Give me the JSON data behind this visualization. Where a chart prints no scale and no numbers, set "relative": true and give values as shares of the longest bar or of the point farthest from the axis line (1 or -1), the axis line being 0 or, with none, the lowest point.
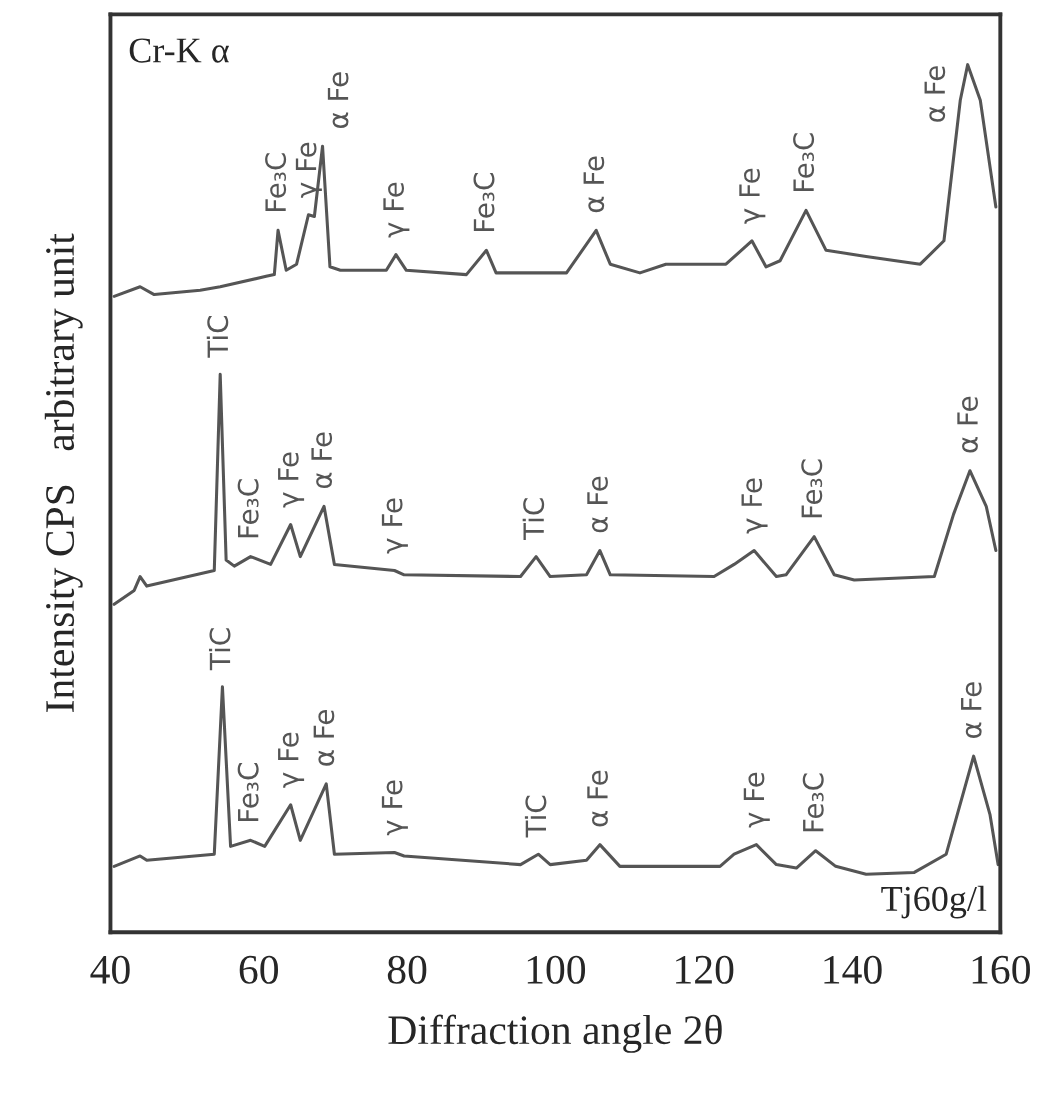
{
  "chart_data": {
    "type": "line",
    "relative": true,
    "xlabel": "Diffraction angle 2θ",
    "ylabel": "Intensity CPS   arbitrary unit",
    "xlim": [
      40,
      160
    ],
    "xticks": [
      40,
      60,
      80,
      100,
      120,
      140,
      160
    ],
    "grid": false,
    "legend": false,
    "marker": "none",
    "line_style": "solid",
    "series": [
      {
        "color": "#555555",
        "x": [
          40.5,
          44.0,
          45.9,
          52.1,
          54.8,
          61.0,
          62.1,
          62.6,
          63.7,
          65.1,
          66.7,
          67.5,
          68.6,
          69.6,
          71.0,
          77.2,
          78.5,
          79.9,
          88.0,
          90.7,
          92.0,
          101.5,
          105.5,
          107.4,
          111.4,
          114.9,
          123.0,
          126.5,
          128.4,
          130.3,
          133.8,
          136.5,
          141.9,
          149.2,
          152.4,
          154.6,
          155.6,
          157.3,
          159.4
        ],
        "values": [
          0.733,
          0.744,
          0.735,
          0.74,
          0.744,
          0.756,
          0.758,
          0.809,
          0.763,
          0.77,
          0.827,
          0.825,
          0.906,
          0.767,
          0.763,
          0.763,
          0.781,
          0.763,
          0.758,
          0.786,
          0.76,
          0.76,
          0.809,
          0.77,
          0.76,
          0.77,
          0.77,
          0.797,
          0.767,
          0.774,
          0.832,
          0.786,
          0.779,
          0.77,
          0.797,
          0.959,
          1.0,
          0.959,
          0.836
        ]
      },
      {
        "color": "#555555",
        "x": [
          40.5,
          43.2,
          44.0,
          44.9,
          54.0,
          54.8,
          55.6,
          56.7,
          58.9,
          61.6,
          64.3,
          65.6,
          68.8,
          70.2,
          78.3,
          79.6,
          95.3,
          97.4,
          99.3,
          104.2,
          106.0,
          107.4,
          121.4,
          124.1,
          126.8,
          129.8,
          131.1,
          134.9,
          137.6,
          140.3,
          151.1,
          153.7,
          155.9,
          158.1,
          159.4
        ],
        "values": [
          0.378,
          0.394,
          0.41,
          0.399,
          0.417,
          0.643,
          0.429,
          0.422,
          0.433,
          0.424,
          0.47,
          0.433,
          0.491,
          0.424,
          0.417,
          0.412,
          0.41,
          0.433,
          0.41,
          0.412,
          0.44,
          0.412,
          0.41,
          0.424,
          0.44,
          0.41,
          0.412,
          0.456,
          0.412,
          0.406,
          0.41,
          0.482,
          0.532,
          0.491,
          0.44
        ]
      },
      {
        "color": "#555555",
        "x": [
          40.5,
          44.0,
          44.9,
          54.0,
          55.1,
          56.2,
          58.9,
          60.8,
          64.3,
          65.6,
          69.1,
          70.2,
          78.3,
          79.6,
          95.3,
          97.7,
          99.3,
          104.2,
          106.0,
          108.7,
          122.2,
          124.1,
          127.1,
          129.8,
          132.5,
          135.1,
          137.8,
          141.9,
          148.4,
          152.7,
          156.4,
          158.6,
          159.7
        ],
        "values": [
          0.076,
          0.088,
          0.083,
          0.09,
          0.283,
          0.099,
          0.106,
          0.099,
          0.147,
          0.106,
          0.171,
          0.09,
          0.092,
          0.088,
          0.078,
          0.09,
          0.078,
          0.083,
          0.101,
          0.076,
          0.076,
          0.09,
          0.101,
          0.078,
          0.074,
          0.094,
          0.076,
          0.067,
          0.069,
          0.09,
          0.203,
          0.136,
          0.078
        ]
      }
    ],
    "annotations": [
      "Cr-K α",
      "Tj60g/l",
      {
        "text": "Fe₃C",
        "x": 62.6,
        "y": 0.809
      },
      {
        "text": "γ Fe",
        "x": 66.7,
        "y": 0.827
      },
      {
        "text": "α Fe",
        "x": 68.6,
        "y": 0.906
      },
      {
        "text": "γ Fe",
        "x": 78.5,
        "y": 0.781
      },
      {
        "text": "Fe₃C",
        "x": 90.7,
        "y": 0.786
      },
      {
        "text": "α Fe",
        "x": 105.5,
        "y": 0.809
      },
      {
        "text": "γ Fe",
        "x": 126.5,
        "y": 0.797
      },
      {
        "text": "Fe₃C",
        "x": 133.8,
        "y": 0.832
      },
      {
        "text": "α Fe",
        "x": 155.6,
        "y": 1.0
      },
      {
        "text": "TiC",
        "x": 54.8,
        "y": 0.643
      },
      {
        "text": "Fe₃C",
        "x": 58.9,
        "y": 0.433
      },
      {
        "text": "γ Fe",
        "x": 64.3,
        "y": 0.47
      },
      {
        "text": "α Fe",
        "x": 68.8,
        "y": 0.491
      },
      {
        "text": "γ Fe",
        "x": 78.3,
        "y": 0.417
      },
      {
        "text": "TiC",
        "x": 97.4,
        "y": 0.433
      },
      {
        "text": "α Fe",
        "x": 106.0,
        "y": 0.44
      },
      {
        "text": "γ Fe",
        "x": 126.8,
        "y": 0.44
      },
      {
        "text": "Fe₃C",
        "x": 134.9,
        "y": 0.456
      },
      {
        "text": "α Fe",
        "x": 155.9,
        "y": 0.532
      },
      {
        "text": "TiC",
        "x": 55.1,
        "y": 0.283
      },
      {
        "text": "Fe₃C",
        "x": 58.9,
        "y": 0.106
      },
      {
        "text": "γ Fe",
        "x": 64.3,
        "y": 0.147
      },
      {
        "text": "α Fe",
        "x": 69.1,
        "y": 0.171
      },
      {
        "text": "γ Fe",
        "x": 78.3,
        "y": 0.092
      },
      {
        "text": "TiC",
        "x": 97.7,
        "y": 0.09
      },
      {
        "text": "α Fe",
        "x": 106.0,
        "y": 0.101
      },
      {
        "text": "γ Fe",
        "x": 127.1,
        "y": 0.101
      },
      {
        "text": "Fe₃C",
        "x": 135.1,
        "y": 0.094
      },
      {
        "text": "α Fe",
        "x": 156.4,
        "y": 0.203
      }
    ]
  }
}
